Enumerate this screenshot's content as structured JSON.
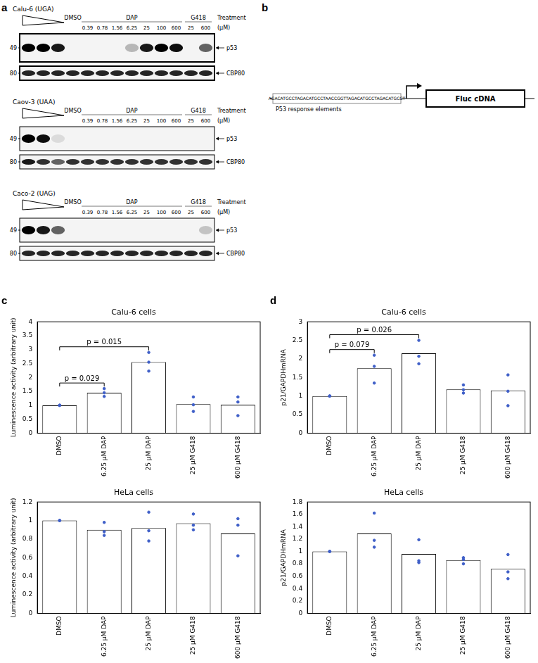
{
  "panel_labels": [
    "a",
    "b",
    "c",
    "d"
  ],
  "blots": {
    "treatment_title": "Treatment",
    "unit": "(µM)",
    "groups": [
      {
        "name": "DMSO",
        "doses": [
          null
        ]
      },
      {
        "name": "DAP",
        "doses": [
          0.39,
          0.78,
          1.56,
          6.25,
          25,
          100,
          600
        ]
      },
      {
        "name": "G418",
        "doses": [
          25,
          600
        ]
      }
    ],
    "panels": [
      {
        "cell_line": "Calu-6 (UGA)",
        "rows": [
          {
            "protein": "p53",
            "marker_kda": 49,
            "intensity": [
              1,
              1,
              0.9,
              0,
              0,
              0,
              0,
              0.25,
              0.9,
              1,
              0.95,
              0,
              0.6
            ]
          },
          {
            "protein": "CBP80",
            "marker_kda": 80,
            "intensity": [
              0.85,
              0.85,
              0.85,
              0.85,
              0.85,
              0.85,
              0.85,
              0.85,
              0.85,
              0.85,
              0.85,
              0.85,
              0.85
            ]
          }
        ]
      },
      {
        "cell_line": "Caov-3 (UAA)",
        "rows": [
          {
            "protein": "p53",
            "marker_kda": 49,
            "intensity": [
              1,
              0.95,
              0.1,
              0,
              0,
              0,
              0,
              0,
              0,
              0,
              0,
              0,
              0
            ]
          },
          {
            "protein": "CBP80",
            "marker_kda": 80,
            "intensity": [
              0.9,
              0.8,
              0.6,
              0.8,
              0.8,
              0.8,
              0.8,
              0.8,
              0.8,
              0.8,
              0.8,
              0.8,
              0.8
            ]
          }
        ]
      },
      {
        "cell_line": "Caco-2 (UAG)",
        "rows": [
          {
            "protein": "p53",
            "marker_kda": 49,
            "intensity": [
              1,
              0.9,
              0.6,
              0,
              0,
              0,
              0,
              0,
              0,
              0,
              0,
              0,
              0.2
            ]
          },
          {
            "protein": "CBP80",
            "marker_kda": 80,
            "intensity": [
              0.85,
              0.85,
              0.85,
              0.85,
              0.85,
              0.85,
              0.85,
              0.85,
              0.85,
              0.85,
              0.85,
              0.85,
              0.85
            ]
          }
        ]
      }
    ]
  },
  "diagram": {
    "sequence": "AGACATGCCTAGACATGCCTAACCGGTTAGACATGCCTAGACATGCCT",
    "element_label": "P53 response elements",
    "gene": "Fluc cDNA"
  },
  "chart_data": [
    {
      "type": "bar",
      "title": "Calu-6 cells",
      "y_label": "Luminescence activity (arbitrary unit)",
      "categories": [
        "DMSO",
        "6.25 µM DAP",
        "25 µM DAP",
        "25 µM G418",
        "600 µM G418"
      ],
      "series": [
        {
          "type": "bar",
          "color": "#ffffff",
          "values": [
            1,
            1.45,
            2.55,
            1.04,
            1.02
          ]
        },
        {
          "type": "scatter",
          "color": "#3f5fc8",
          "marker": "circle",
          "values": [
            [
              1,
              1,
              1
            ],
            [
              1.6,
              1.45,
              1.32
            ],
            [
              2.9,
              2.55,
              2.23
            ],
            [
              1.3,
              1.02,
              0.78
            ],
            [
              1.3,
              1.12,
              0.63
            ]
          ]
        }
      ],
      "ylim": [
        0,
        4
      ],
      "yticks": [
        0,
        0.5,
        1,
        1.5,
        2,
        2.5,
        3,
        3.5,
        4
      ],
      "grid": false,
      "annotations": [
        {
          "from": "DMSO",
          "to": "6.25 µM DAP",
          "label": "p = 0.029"
        },
        {
          "from": "DMSO",
          "to": "25 µM DAP",
          "label": "p = 0.015"
        }
      ]
    },
    {
      "type": "bar",
      "title": "HeLa cells",
      "y_label": "Luminescence activity (arbitrary unit)",
      "categories": [
        "DMSO",
        "6.25 µM DAP",
        "25 µM DAP",
        "25 µM G418",
        "600 µM G418"
      ],
      "series": [
        {
          "type": "bar",
          "color": "#ffffff",
          "values": [
            1,
            0.9,
            0.92,
            0.97,
            0.86
          ]
        },
        {
          "type": "scatter",
          "color": "#3f5fc8",
          "marker": "circle",
          "values": [
            [
              1,
              1,
              1
            ],
            [
              0.98,
              0.88,
              0.84
            ],
            [
              1.09,
              0.89,
              0.78
            ],
            [
              1.07,
              0.95,
              0.9
            ],
            [
              1.02,
              0.95,
              0.62
            ]
          ]
        }
      ],
      "ylim": [
        0,
        1.2
      ],
      "yticks": [
        0,
        0.2,
        0.4,
        0.6,
        0.8,
        1,
        1.2
      ],
      "grid": false,
      "annotations": []
    },
    {
      "type": "bar",
      "title": "Calu-6 cells",
      "y_label": "p21/GAPDHmRNA",
      "categories": [
        "DMSO",
        "6.25 µM DAP",
        "25 µM DAP",
        "25 µM G418",
        "600 µM G418"
      ],
      "series": [
        {
          "type": "bar",
          "color": "#ffffff",
          "values": [
            1,
            1.75,
            2.15,
            1.18,
            1.15
          ]
        },
        {
          "type": "scatter",
          "color": "#3f5fc8",
          "marker": "circle",
          "values": [
            [
              1,
              1,
              1
            ],
            [
              2.1,
              1.8,
              1.35
            ],
            [
              2.5,
              2.07,
              1.87
            ],
            [
              1.3,
              1.17,
              1.08
            ],
            [
              1.57,
              1.13,
              0.74
            ]
          ]
        }
      ],
      "ylim": [
        0,
        3
      ],
      "yticks": [
        0,
        0.5,
        1,
        1.5,
        2,
        2.5,
        3
      ],
      "grid": false,
      "annotations": [
        {
          "from": "DMSO",
          "to": "6.25 µM DAP",
          "label": "p = 0.079"
        },
        {
          "from": "DMSO",
          "to": "25 µM DAP",
          "label": "p = 0.026"
        }
      ]
    },
    {
      "type": "bar",
      "title": "HeLa cells",
      "y_label": "p21/GAPDHmRNA",
      "categories": [
        "DMSO",
        "6.25 µM DAP",
        "25 µM DAP",
        "25 µM G418",
        "600 µM G418"
      ],
      "series": [
        {
          "type": "bar",
          "color": "#ffffff",
          "values": [
            1,
            1.29,
            0.96,
            0.86,
            0.72
          ]
        },
        {
          "type": "scatter",
          "color": "#3f5fc8",
          "marker": "circle",
          "values": [
            [
              1,
              1,
              1
            ],
            [
              1.62,
              1.18,
              1.07
            ],
            [
              1.19,
              0.85,
              0.82
            ],
            [
              0.9,
              0.87,
              0.8
            ],
            [
              0.95,
              0.67,
              0.56
            ]
          ]
        }
      ],
      "ylim": [
        0,
        1.8
      ],
      "yticks": [
        0,
        0.2,
        0.4,
        0.6,
        0.8,
        1,
        1.2,
        1.4,
        1.6,
        1.8
      ],
      "grid": false,
      "annotations": []
    }
  ]
}
